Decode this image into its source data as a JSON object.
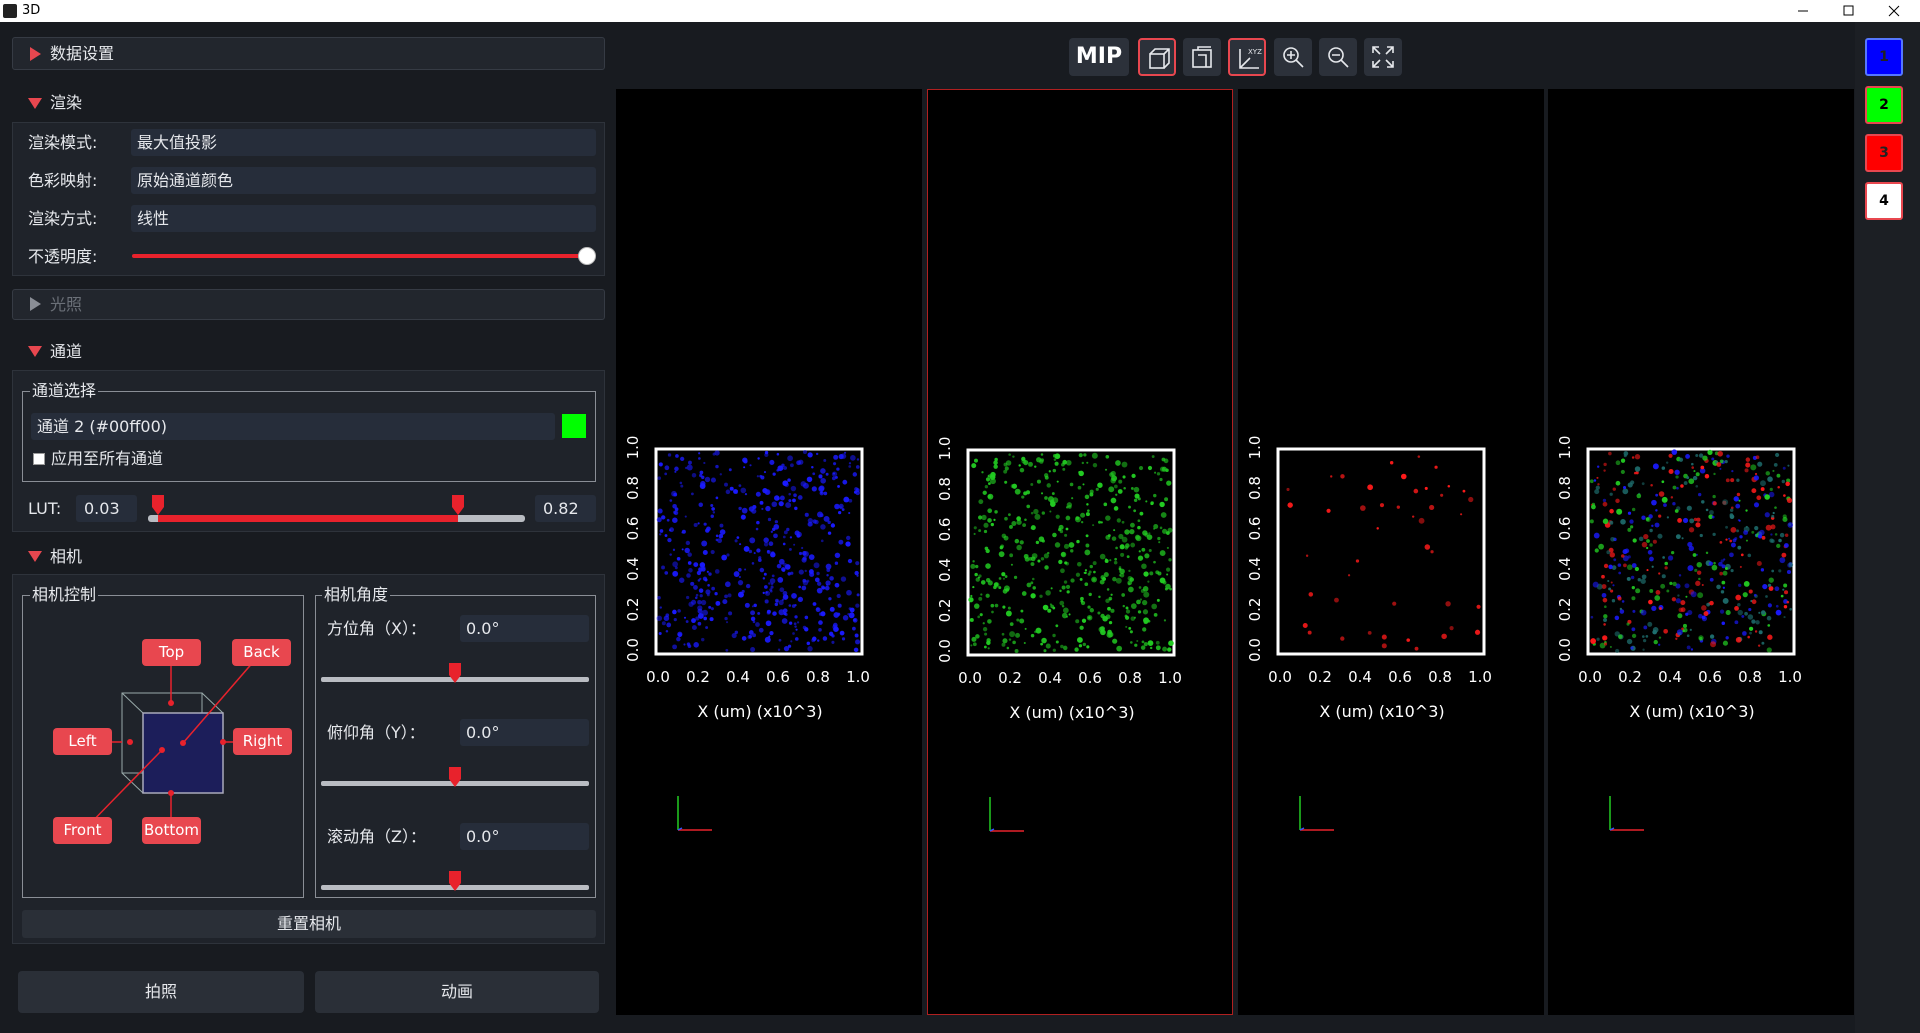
{
  "window": {
    "title": "3D"
  },
  "sidebar": {
    "data_settings": {
      "title": "数据设置"
    },
    "render": {
      "title": "渲染",
      "fields": [
        {
          "label": "渲染模式:",
          "value": "最大值投影"
        },
        {
          "label": "色彩映射:",
          "value": "原始通道颜色"
        },
        {
          "label": "渲染方式:",
          "value": "线性"
        }
      ],
      "opacity_label": "不透明度:"
    },
    "lighting": {
      "title": "光照"
    },
    "channel": {
      "title": "通道",
      "group_title": "通道选择",
      "selected": "通道 2 (#00ff00)",
      "apply_all": "应用至所有通道",
      "lut_label": "LUT:",
      "lut_min": "0.03",
      "lut_max": "0.82"
    },
    "camera": {
      "title": "相机",
      "control_title": "相机控制",
      "buttons": [
        "Top",
        "Back",
        "Left",
        "Right",
        "Front",
        "Bottom"
      ],
      "angle_title": "相机角度",
      "angles": [
        {
          "label": "方位角（X）：",
          "value": "0.0°"
        },
        {
          "label": "俯仰角（Y）：",
          "value": "0.0°"
        },
        {
          "label": "滚动角（Z）：",
          "value": "0.0°"
        }
      ],
      "reset": "重置相机"
    },
    "actions": [
      "拍照",
      "动画"
    ]
  },
  "toolbar": {
    "mip": "MIP",
    "xyz": "XYZ"
  },
  "views": [
    {
      "x_label": "X (um) (x10^3)",
      "color": "#1a1aff"
    },
    {
      "x_label": "X (um) (x10^3)",
      "color": "#22cc22"
    },
    {
      "x_label": "X (um) (x10^3)",
      "color": "#ff1a1a"
    },
    {
      "x_label": "X (um) (x10^3)",
      "color": "mixed"
    }
  ],
  "axis_ticks": [
    "0.0",
    "0.2",
    "0.4",
    "0.6",
    "0.8",
    "1.0"
  ],
  "channels": [
    {
      "label": "1",
      "color": "#0000ff"
    },
    {
      "label": "2",
      "color": "#00ff00"
    },
    {
      "label": "3",
      "color": "#ff0000"
    },
    {
      "label": "4",
      "color": "#ffffff"
    }
  ]
}
